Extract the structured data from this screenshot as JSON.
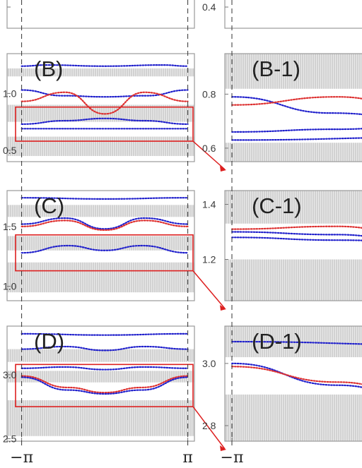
{
  "chart_data": [
    {
      "type": "scatter",
      "label": "",
      "ylim": [
        0.3,
        0.5
      ],
      "yticks": [
        {
          "v": 0.4,
          "t": ""
        }
      ],
      "xticks": [],
      "zoom_box": false,
      "bands": [],
      "series": []
    },
    {
      "type": "scatter",
      "label": "",
      "ylim": [
        0.3,
        0.5
      ],
      "yticks": [
        {
          "v": 0.4,
          "t": "0.4"
        }
      ],
      "xticks": [],
      "zoom_box": false,
      "bands": [],
      "series": []
    },
    {
      "type": "scatter",
      "label": "(B)",
      "ylim": [
        0.4,
        1.35
      ],
      "yticks": [
        {
          "v": 0.5,
          "t": "0.5"
        },
        {
          "v": 1.0,
          "t": "1.0"
        }
      ],
      "xticks": [],
      "zoom_box": {
        "y0": 0.58,
        "y1": 0.88
      },
      "bands": [
        [
          0.45,
          0.62
        ],
        [
          0.75,
          0.9
        ],
        [
          1.15,
          1.22
        ]
      ],
      "series": [
        {
          "color": "#2020cc",
          "points": [
            [
              -3.14,
              1.24
            ],
            [
              -2.2,
              1.25
            ],
            [
              0,
              1.24
            ],
            [
              2.2,
              1.25
            ],
            [
              3.14,
              1.24
            ]
          ]
        },
        {
          "color": "#2020cc",
          "points": [
            [
              -3.14,
              1.03
            ],
            [
              -1.6,
              0.98
            ],
            [
              0,
              0.97
            ],
            [
              1.6,
              0.98
            ],
            [
              3.14,
              1.03
            ]
          ]
        },
        {
          "color": "#dd3030",
          "points": [
            [
              -3.14,
              0.93
            ],
            [
              -1.5,
              1.01
            ],
            [
              0,
              0.82
            ],
            [
              1.5,
              1.01
            ],
            [
              3.14,
              0.93
            ]
          ]
        },
        {
          "color": "#2020cc",
          "points": [
            [
              -3.14,
              0.73
            ],
            [
              -1.5,
              0.76
            ],
            [
              0,
              0.78
            ],
            [
              1.5,
              0.76
            ],
            [
              3.14,
              0.73
            ]
          ]
        },
        {
          "color": "#2020cc",
          "points": [
            [
              -3.14,
              0.69
            ],
            [
              0,
              0.69
            ],
            [
              3.14,
              0.69
            ]
          ]
        }
      ]
    },
    {
      "type": "scatter",
      "label": "(B-1)",
      "ylim": [
        0.55,
        0.95
      ],
      "yticks": [
        {
          "v": 0.6,
          "t": "0.6"
        },
        {
          "v": 0.8,
          "t": "0.8"
        }
      ],
      "xticks": [],
      "zoom_box": false,
      "bands": [
        [
          0.55,
          0.62
        ],
        [
          0.82,
          0.95
        ]
      ],
      "series": [
        {
          "color": "#2020cc",
          "points": [
            [
              -3.14,
              0.79
            ],
            [
              -1.6,
              0.73
            ],
            [
              0,
              0.7
            ],
            [
              1.6,
              0.72
            ]
          ]
        },
        {
          "color": "#dd3030",
          "points": [
            [
              -3.14,
              0.76
            ],
            [
              -1.5,
              0.79
            ],
            [
              0,
              0.73
            ],
            [
              1.6,
              0.75
            ]
          ]
        },
        {
          "color": "#2020cc",
          "points": [
            [
              -3.14,
              0.66
            ],
            [
              -1.5,
              0.67
            ],
            [
              0,
              0.69
            ],
            [
              1.6,
              0.71
            ]
          ]
        },
        {
          "color": "#2020cc",
          "points": [
            [
              -3.14,
              0.63
            ],
            [
              0,
              0.64
            ],
            [
              1.6,
              0.65
            ]
          ]
        }
      ]
    },
    {
      "type": "scatter",
      "label": "(C)",
      "ylim": [
        0.88,
        1.8
      ],
      "yticks": [
        {
          "v": 1.0,
          "t": "1.0"
        },
        {
          "v": 1.5,
          "t": "1.5"
        }
      ],
      "xticks": [],
      "zoom_box": {
        "y0": 1.13,
        "y1": 1.43
      },
      "bands": [
        [
          0.95,
          1.2
        ],
        [
          1.3,
          1.42
        ],
        [
          1.58,
          1.68
        ]
      ],
      "series": [
        {
          "color": "#2020cc",
          "points": [
            [
              -3.14,
              1.74
            ],
            [
              0,
              1.73
            ],
            [
              3.14,
              1.74
            ]
          ]
        },
        {
          "color": "#2020cc",
          "points": [
            [
              -3.14,
              1.52
            ],
            [
              -1.5,
              1.57
            ],
            [
              0,
              1.48
            ],
            [
              1.5,
              1.57
            ],
            [
              3.14,
              1.52
            ]
          ]
        },
        {
          "color": "#dd3030",
          "points": [
            [
              -3.14,
              1.5
            ],
            [
              -1.5,
              1.55
            ],
            [
              0,
              1.47
            ],
            [
              1.5,
              1.55
            ],
            [
              3.14,
              1.5
            ]
          ]
        },
        {
          "color": "#2020cc",
          "points": [
            [
              -3.14,
              1.28
            ],
            [
              -1.4,
              1.34
            ],
            [
              0,
              1.3
            ],
            [
              1.4,
              1.34
            ],
            [
              3.14,
              1.28
            ]
          ]
        }
      ]
    },
    {
      "type": "scatter",
      "label": "(C-1)",
      "ylim": [
        1.05,
        1.45
      ],
      "yticks": [
        {
          "v": 1.2,
          "t": "1.2"
        },
        {
          "v": 1.4,
          "t": "1.4"
        }
      ],
      "xticks": [],
      "zoom_box": false,
      "bands": [
        [
          1.05,
          1.2
        ],
        [
          1.33,
          1.45
        ]
      ],
      "series": [
        {
          "color": "#2020cc",
          "points": [
            [
              -3.14,
              1.3
            ],
            [
              -1.5,
              1.29
            ],
            [
              0,
              1.25
            ],
            [
              1.5,
              1.3
            ]
          ]
        },
        {
          "color": "#dd3030",
          "points": [
            [
              -3.14,
              1.31
            ],
            [
              -1.5,
              1.32
            ],
            [
              0,
              1.27
            ],
            [
              1.5,
              1.34
            ]
          ]
        },
        {
          "color": "#2020cc",
          "points": [
            [
              -3.14,
              1.28
            ],
            [
              -1.5,
              1.27
            ],
            [
              0,
              1.26
            ],
            [
              1.5,
              1.27
            ]
          ]
        }
      ]
    },
    {
      "type": "scatter",
      "label": "(D)",
      "ylim": [
        2.48,
        3.38
      ],
      "yticks": [
        {
          "v": 2.5,
          "t": "2.5"
        },
        {
          "v": 3.0,
          "t": "3.0"
        }
      ],
      "xticks": [
        {
          "v": -3.14159,
          "t": "−π"
        },
        {
          "v": 3.14159,
          "t": "π"
        }
      ],
      "zoom_box": {
        "y0": 2.75,
        "y1": 3.08
      },
      "bands": [
        [
          2.52,
          2.8
        ],
        [
          2.94,
          3.03
        ],
        [
          3.1,
          3.2
        ]
      ],
      "series": [
        {
          "color": "#2020cc",
          "points": [
            [
              -3.14,
              3.32
            ],
            [
              0,
              3.31
            ],
            [
              3.14,
              3.32
            ]
          ]
        },
        {
          "color": "#2020cc",
          "points": [
            [
              -3.14,
              3.2
            ],
            [
              -1.5,
              3.22
            ],
            [
              0,
              3.19
            ],
            [
              1.5,
              3.22
            ],
            [
              3.14,
              3.2
            ]
          ]
        },
        {
          "color": "#2020cc",
          "points": [
            [
              -3.14,
              3.05
            ],
            [
              -1.5,
              3.06
            ],
            [
              0,
              3.04
            ],
            [
              1.5,
              3.06
            ],
            [
              3.14,
              3.05
            ]
          ]
        },
        {
          "color": "#dd3030",
          "points": [
            [
              -3.14,
              2.99
            ],
            [
              -1.4,
              2.9
            ],
            [
              0,
              2.86
            ],
            [
              1.4,
              2.9
            ],
            [
              3.14,
              2.99
            ]
          ]
        },
        {
          "color": "#2020cc",
          "points": [
            [
              -3.14,
              2.98
            ],
            [
              -1.4,
              2.88
            ],
            [
              0,
              2.85
            ],
            [
              1.4,
              2.88
            ],
            [
              3.14,
              2.98
            ]
          ]
        }
      ]
    },
    {
      "type": "scatter",
      "label": "(D-1)",
      "ylim": [
        2.75,
        3.12
      ],
      "yticks": [
        {
          "v": 2.8,
          "t": "2.8"
        },
        {
          "v": 3.0,
          "t": "3.0"
        }
      ],
      "xticks": [
        {
          "v": -3.14159,
          "t": "−π"
        }
      ],
      "zoom_box": false,
      "bands": [
        [
          2.75,
          2.9
        ],
        [
          3.02,
          3.12
        ]
      ],
      "series": [
        {
          "color": "#2020cc",
          "points": [
            [
              -3.14,
              3.0
            ],
            [
              -1.5,
              2.93
            ],
            [
              0,
              2.87
            ],
            [
              1.5,
              2.93
            ]
          ]
        },
        {
          "color": "#dd3030",
          "points": [
            [
              -3.14,
              2.99
            ],
            [
              -1.5,
              2.94
            ],
            [
              0,
              2.88
            ],
            [
              1.5,
              2.95
            ]
          ]
        },
        {
          "color": "#2020cc",
          "points": [
            [
              -3.14,
              3.07
            ],
            [
              0,
              3.06
            ],
            [
              1.6,
              3.05
            ]
          ]
        }
      ]
    }
  ]
}
